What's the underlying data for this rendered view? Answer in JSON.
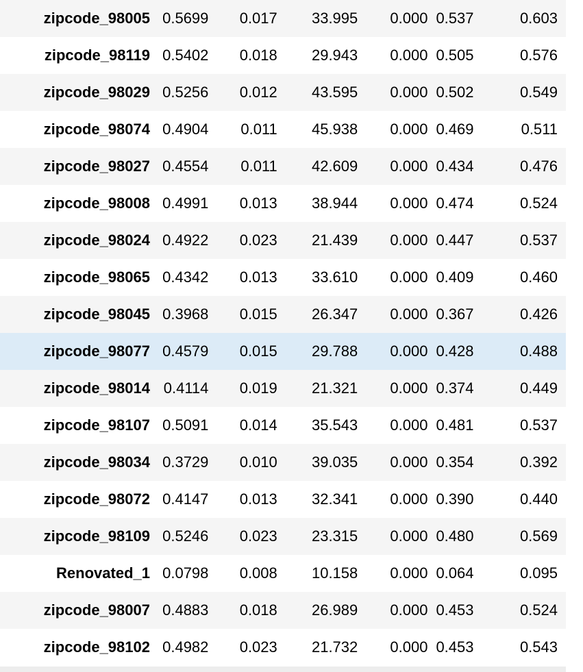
{
  "rows": [
    {
      "label": "zipcode_98005",
      "coef": "0.5699",
      "std_err": "0.017",
      "z": "33.995",
      "p": "0.000",
      "ci_low": "0.537",
      "ci_high": "0.603"
    },
    {
      "label": "zipcode_98119",
      "coef": "0.5402",
      "std_err": "0.018",
      "z": "29.943",
      "p": "0.000",
      "ci_low": "0.505",
      "ci_high": "0.576"
    },
    {
      "label": "zipcode_98029",
      "coef": "0.5256",
      "std_err": "0.012",
      "z": "43.595",
      "p": "0.000",
      "ci_low": "0.502",
      "ci_high": "0.549"
    },
    {
      "label": "zipcode_98074",
      "coef": "0.4904",
      "std_err": "0.011",
      "z": "45.938",
      "p": "0.000",
      "ci_low": "0.469",
      "ci_high": "0.511"
    },
    {
      "label": "zipcode_98027",
      "coef": "0.4554",
      "std_err": "0.011",
      "z": "42.609",
      "p": "0.000",
      "ci_low": "0.434",
      "ci_high": "0.476"
    },
    {
      "label": "zipcode_98008",
      "coef": "0.4991",
      "std_err": "0.013",
      "z": "38.944",
      "p": "0.000",
      "ci_low": "0.474",
      "ci_high": "0.524"
    },
    {
      "label": "zipcode_98024",
      "coef": "0.4922",
      "std_err": "0.023",
      "z": "21.439",
      "p": "0.000",
      "ci_low": "0.447",
      "ci_high": "0.537"
    },
    {
      "label": "zipcode_98065",
      "coef": "0.4342",
      "std_err": "0.013",
      "z": "33.610",
      "p": "0.000",
      "ci_low": "0.409",
      "ci_high": "0.460"
    },
    {
      "label": "zipcode_98045",
      "coef": "0.3968",
      "std_err": "0.015",
      "z": "26.347",
      "p": "0.000",
      "ci_low": "0.367",
      "ci_high": "0.426"
    },
    {
      "label": "zipcode_98077",
      "coef": "0.4579",
      "std_err": "0.015",
      "z": "29.788",
      "p": "0.000",
      "ci_low": "0.428",
      "ci_high": "0.488"
    },
    {
      "label": "zipcode_98014",
      "coef": "0.4114",
      "std_err": "0.019",
      "z": "21.321",
      "p": "0.000",
      "ci_low": "0.374",
      "ci_high": "0.449"
    },
    {
      "label": "zipcode_98107",
      "coef": "0.5091",
      "std_err": "0.014",
      "z": "35.543",
      "p": "0.000",
      "ci_low": "0.481",
      "ci_high": "0.537"
    },
    {
      "label": "zipcode_98034",
      "coef": "0.3729",
      "std_err": "0.010",
      "z": "39.035",
      "p": "0.000",
      "ci_low": "0.354",
      "ci_high": "0.392"
    },
    {
      "label": "zipcode_98072",
      "coef": "0.4147",
      "std_err": "0.013",
      "z": "32.341",
      "p": "0.000",
      "ci_low": "0.390",
      "ci_high": "0.440"
    },
    {
      "label": "zipcode_98109",
      "coef": "0.5246",
      "std_err": "0.023",
      "z": "23.315",
      "p": "0.000",
      "ci_low": "0.480",
      "ci_high": "0.569"
    },
    {
      "label": "Renovated_1",
      "coef": "0.0798",
      "std_err": "0.008",
      "z": "10.158",
      "p": "0.000",
      "ci_low": "0.064",
      "ci_high": "0.095"
    },
    {
      "label": "zipcode_98007",
      "coef": "0.4883",
      "std_err": "0.018",
      "z": "26.989",
      "p": "0.000",
      "ci_low": "0.453",
      "ci_high": "0.524"
    },
    {
      "label": "zipcode_98102",
      "coef": "0.4982",
      "std_err": "0.023",
      "z": "21.732",
      "p": "0.000",
      "ci_low": "0.453",
      "ci_high": "0.543"
    }
  ],
  "highlighted_row_index": 9,
  "colors": {
    "stripe": "#f5f5f5",
    "highlight": "#dcebf7",
    "text": "#000000"
  }
}
